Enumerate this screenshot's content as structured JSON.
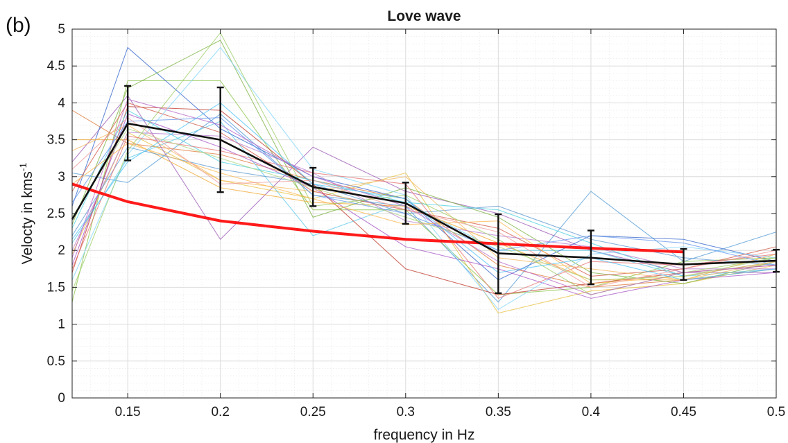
{
  "panel_label": "(b)",
  "colors": {
    "mean": "#111111",
    "reference": "#ff1a1a",
    "grid_major": "#dcdcdc",
    "grid_minor": "#ececec",
    "ensemble": [
      "#4f9ad6",
      "#e07a3a",
      "#e8c040",
      "#9b59b6",
      "#8bc34a",
      "#5bc8e8",
      "#c0392b",
      "#3366cc",
      "#f0a830",
      "#a855c7",
      "#7cb342",
      "#81d4fa",
      "#d35b4b",
      "#5d9ad0",
      "#f4b860",
      "#b77fd1",
      "#9ccc65",
      "#4dd0e1",
      "#e57373",
      "#6495ed",
      "#ffb74d",
      "#ba68c8",
      "#aed581",
      "#4fc3f7",
      "#ef9a9a"
    ]
  },
  "chart_data": {
    "type": "line",
    "title": "Love wave",
    "xlabel": "frequency in Hz",
    "ylabel_main": "Velocty in kms",
    "ylabel_sup": "-1",
    "xlim": [
      0.12,
      0.5
    ],
    "ylim": [
      0,
      5
    ],
    "grid": true,
    "minor_grid": true,
    "xticks": [
      0.15,
      0.2,
      0.25,
      0.3,
      0.35,
      0.4,
      0.45,
      0.5
    ],
    "xtick_labels": [
      "0.15",
      "0.2",
      "0.25",
      "0.3",
      "0.35",
      "0.4",
      "0.45",
      "0.5"
    ],
    "yticks": [
      0,
      0.5,
      1,
      1.5,
      2,
      2.5,
      3,
      3.5,
      4,
      4.5,
      5
    ],
    "ytick_labels": [
      "0",
      "0.5",
      "1",
      "1.5",
      "2",
      "2.5",
      "3",
      "3.5",
      "4",
      "4.5",
      "5"
    ],
    "x": [
      0.12,
      0.15,
      0.2,
      0.25,
      0.3,
      0.35,
      0.4,
      0.45,
      0.5
    ],
    "mean_series": {
      "values": [
        2.42,
        3.72,
        3.5,
        2.86,
        2.64,
        1.96,
        1.9,
        1.81,
        1.86
      ],
      "error_low": [
        null,
        3.22,
        2.79,
        2.6,
        2.36,
        1.42,
        1.54,
        1.6,
        1.71
      ],
      "error_high": [
        null,
        4.23,
        4.21,
        3.12,
        2.92,
        2.49,
        2.27,
        2.02,
        2.01
      ]
    },
    "reference_series": {
      "x": [
        0.12,
        0.15,
        0.2,
        0.25,
        0.3,
        0.35,
        0.4,
        0.45
      ],
      "values": [
        2.9,
        2.66,
        2.4,
        2.26,
        2.15,
        2.09,
        2.03,
        1.98
      ]
    },
    "ensemble_series": [
      [
        3.05,
        2.92,
        3.85,
        2.75,
        2.6,
        1.3,
        2.8,
        1.85,
        2.25
      ],
      [
        3.9,
        3.45,
        3.3,
        2.95,
        2.7,
        1.8,
        1.5,
        1.6,
        1.75
      ],
      [
        1.95,
        3.6,
        2.95,
        2.7,
        3.05,
        1.15,
        1.45,
        1.55,
        1.8
      ],
      [
        3.2,
        4.1,
        2.15,
        3.4,
        2.8,
        2.5,
        2.0,
        1.7,
        1.7
      ],
      [
        1.3,
        4.3,
        4.3,
        2.55,
        2.55,
        1.4,
        1.5,
        1.85,
        1.9
      ],
      [
        2.1,
        3.25,
        3.75,
        2.2,
        2.65,
        2.0,
        2.0,
        1.65,
        1.75
      ],
      [
        1.7,
        3.95,
        3.9,
        2.9,
        1.75,
        1.4,
        1.55,
        1.7,
        1.8
      ],
      [
        2.6,
        4.75,
        3.65,
        3.0,
        2.7,
        1.6,
        2.2,
        2.15,
        1.85
      ],
      [
        3.5,
        3.5,
        2.85,
        2.65,
        2.6,
        2.1,
        1.6,
        1.6,
        1.95
      ],
      [
        1.8,
        3.85,
        3.4,
        2.85,
        2.05,
        1.75,
        1.35,
        1.6,
        1.7
      ],
      [
        2.35,
        4.2,
        4.85,
        2.45,
        2.85,
        2.45,
        1.7,
        1.55,
        1.85
      ],
      [
        1.6,
        3.3,
        4.75,
        3.1,
        2.75,
        1.2,
        1.95,
        2.05,
        1.9
      ],
      [
        2.8,
        4.0,
        3.6,
        2.8,
        2.55,
        2.3,
        1.65,
        1.75,
        2.05
      ],
      [
        2.2,
        3.4,
        3.1,
        2.9,
        2.5,
        2.6,
        2.15,
        1.9,
        1.8
      ],
      [
        3.35,
        3.7,
        2.95,
        2.8,
        3.0,
        1.9,
        1.75,
        1.6,
        1.85
      ],
      [
        2.0,
        3.6,
        3.55,
        3.05,
        2.4,
        2.2,
        2.05,
        1.75,
        1.75
      ],
      [
        1.45,
        3.35,
        4.95,
        2.6,
        2.75,
        2.15,
        1.4,
        1.7,
        1.9
      ],
      [
        2.3,
        3.9,
        3.2,
        2.95,
        2.65,
        2.55,
        2.1,
        1.65,
        1.85
      ],
      [
        1.75,
        3.55,
        3.35,
        3.05,
        2.9,
        1.35,
        1.85,
        1.8,
        1.95
      ],
      [
        2.65,
        3.75,
        3.8,
        2.75,
        2.5,
        2.0,
        2.2,
        2.1,
        1.8
      ],
      [
        2.9,
        3.45,
        3.05,
        2.7,
        2.35,
        2.4,
        1.55,
        1.65,
        1.85
      ],
      [
        1.9,
        4.05,
        3.7,
        3.0,
        2.6,
        1.85,
        1.4,
        1.7,
        1.8
      ],
      [
        2.45,
        3.65,
        3.25,
        2.85,
        2.45,
        2.05,
        1.6,
        1.65,
        1.9
      ],
      [
        2.15,
        3.2,
        4.0,
        2.9,
        2.7,
        1.7,
        1.9,
        1.6,
        1.75
      ],
      [
        3.1,
        3.8,
        2.9,
        2.95,
        2.55,
        2.25,
        1.5,
        1.75,
        2.0
      ]
    ]
  }
}
